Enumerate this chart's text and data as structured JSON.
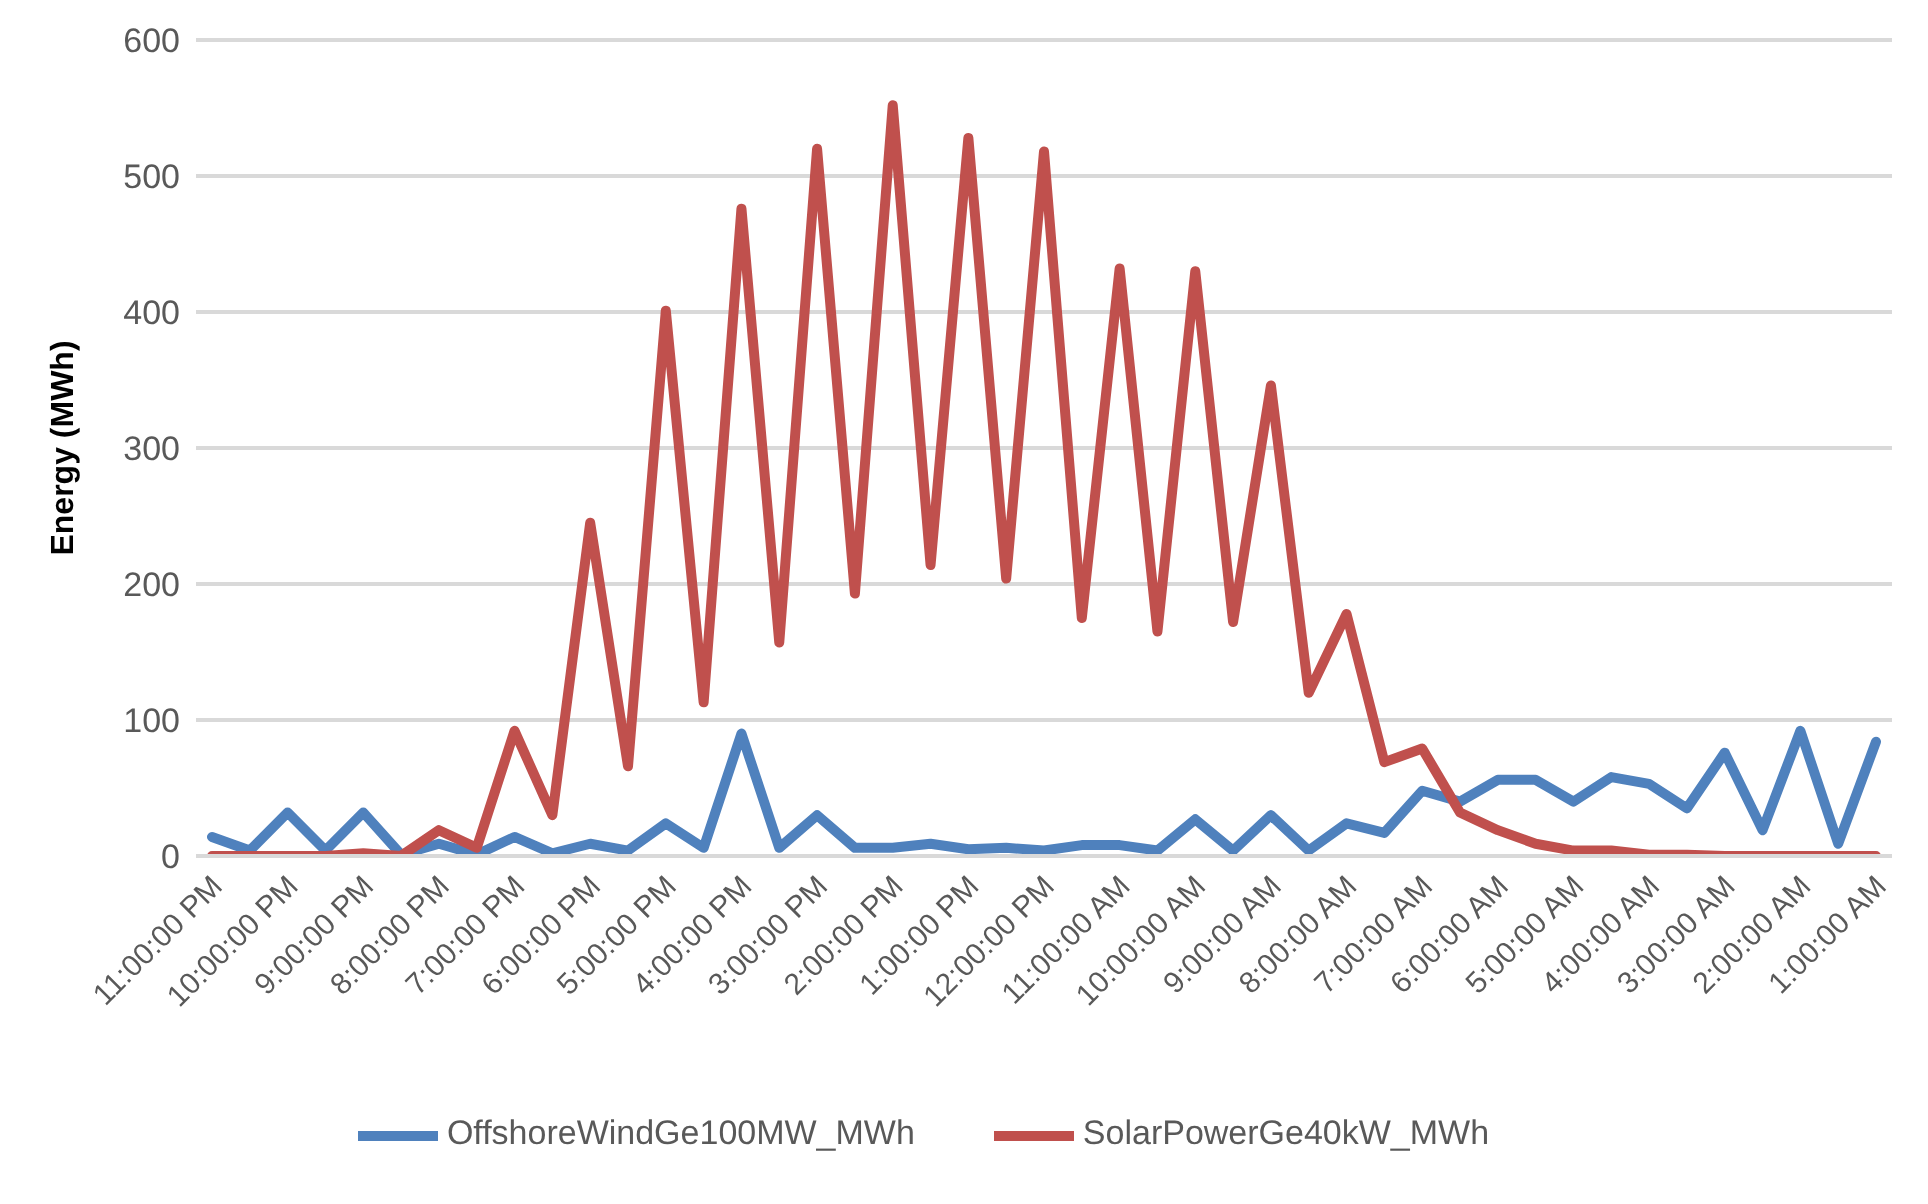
{
  "chart_data": {
    "type": "line",
    "ylabel": "Energy (MWh)",
    "categories": [
      "11:00:00 PM",
      null,
      "10:00:00 PM",
      null,
      "9:00:00 PM",
      null,
      "8:00:00 PM",
      null,
      "7:00:00 PM",
      null,
      "6:00:00 PM",
      null,
      "5:00:00 PM",
      null,
      "4:00:00 PM",
      null,
      "3:00:00 PM",
      null,
      "2:00:00 PM",
      null,
      "1:00:00 PM",
      null,
      "12:00:00 PM",
      null,
      "11:00:00 AM",
      null,
      "10:00:00 AM",
      null,
      "9:00:00 AM",
      null,
      "8:00:00 AM",
      null,
      "7:00:00 AM",
      null,
      "6:00:00 AM",
      null,
      "5:00:00 AM",
      null,
      "4:00:00 AM",
      null,
      "3:00:00 AM",
      null,
      "2:00:00 AM",
      null,
      "1:00:00 AM"
    ],
    "series": [
      {
        "name": "OffshoreWindGe100MW_MWh",
        "color": "#4f81bd",
        "values": [
          14,
          4,
          32,
          4,
          32,
          1,
          9,
          1,
          14,
          2,
          9,
          4,
          24,
          6,
          90,
          6,
          30,
          6,
          6,
          9,
          5,
          6,
          4,
          8,
          8,
          4,
          27,
          4,
          30,
          4,
          24,
          17,
          48,
          40,
          56,
          56,
          40,
          58,
          53,
          35,
          76,
          19,
          92,
          9,
          84
        ]
      },
      {
        "name": "SolarPowerGe40kW_MWh",
        "color": "#c0504d",
        "values": [
          0,
          0,
          0,
          0,
          2,
          0,
          19,
          6,
          92,
          30,
          245,
          66,
          401,
          113,
          476,
          157,
          520,
          193,
          552,
          214,
          528,
          204,
          518,
          175,
          432,
          165,
          430,
          172,
          346,
          120,
          178,
          69,
          79,
          32,
          19,
          9,
          4,
          4,
          1,
          1,
          0,
          0,
          0,
          0,
          0
        ]
      }
    ],
    "ylim": [
      0,
      600
    ],
    "yticks": [
      0,
      100,
      200,
      300,
      400,
      500,
      600
    ],
    "grid": "y",
    "legend": "bottom",
    "marker": "none",
    "line_style": "solid"
  }
}
